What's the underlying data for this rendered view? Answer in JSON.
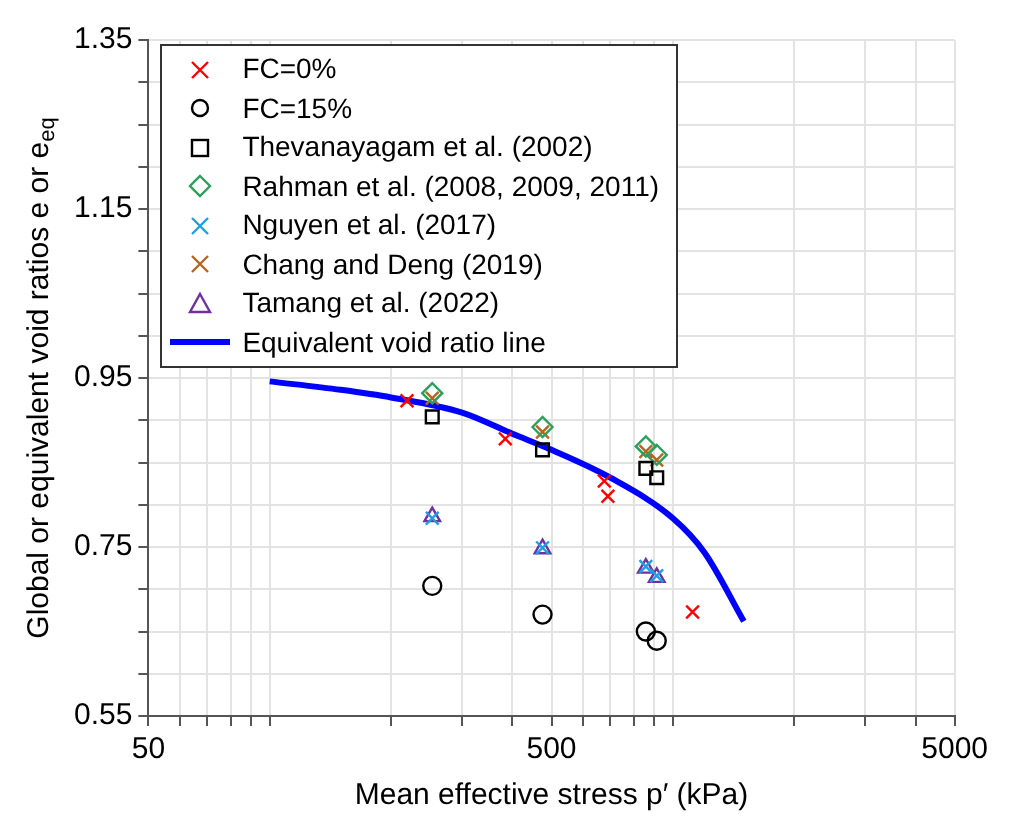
{
  "chart_data": {
    "type": "scatter",
    "xlabel": "Mean effective stress p′ (kPa)",
    "ylabel": "Global or equivalent void ratios e or e$_{eq}$",
    "log": "x",
    "grid": true,
    "legend": "top left",
    "xlim": [
      50,
      5000
    ],
    "ylim": [
      0.55,
      1.35
    ],
    "xticks": [
      50,
      {
        "value": 60,
        "label": null
      },
      {
        "value": 70,
        "label": null
      },
      {
        "value": 80,
        "label": null
      },
      {
        "value": 90,
        "label": null
      },
      {
        "value": 100,
        "label": null
      },
      {
        "value": 200,
        "label": null
      },
      {
        "value": 300,
        "label": null
      },
      {
        "value": 400,
        "label": null
      },
      500,
      {
        "value": 600,
        "label": null
      },
      {
        "value": 700,
        "label": null
      },
      {
        "value": 800,
        "label": null
      },
      {
        "value": 900,
        "label": null
      },
      {
        "value": 1000,
        "label": null
      },
      {
        "value": 2000,
        "label": null
      },
      {
        "value": 3000,
        "label": null
      },
      {
        "value": 4000,
        "label": null
      },
      5000
    ],
    "yticks": [
      0.55,
      {
        "value": 0.6,
        "label": null
      },
      {
        "value": 0.65,
        "label": null
      },
      {
        "value": 0.7,
        "label": null
      },
      0.75,
      {
        "value": 0.8,
        "label": null
      },
      {
        "value": 0.85,
        "label": null
      },
      {
        "value": 0.9,
        "label": null
      },
      0.95,
      {
        "value": 1.0,
        "label": null
      },
      {
        "value": 1.05,
        "label": null
      },
      {
        "value": 1.1,
        "label": null
      },
      1.15,
      {
        "value": 1.2,
        "label": null
      },
      {
        "value": 1.25,
        "label": null
      },
      {
        "value": 1.3,
        "label": null
      },
      1.35
    ],
    "series": [
      {
        "name": "FC=0%",
        "color": "#ff0000",
        "marker": "cross",
        "x": [
          219,
          384,
          676,
          690,
          1119
        ],
        "values": [
          0.923,
          0.878,
          0.828,
          0.81,
          0.673
        ]
      },
      {
        "name": "FC=15%",
        "color": "#000000",
        "marker": "circle",
        "x": [
          253,
          475,
          857,
          912
        ],
        "values": [
          0.704,
          0.67,
          0.65,
          0.639
        ]
      },
      {
        "name": "Thevanayagam et al. (2002)",
        "color": "#000000",
        "marker": "square",
        "x": [
          253,
          475,
          857,
          912
        ],
        "values": [
          0.904,
          0.865,
          0.843,
          0.832
        ]
      },
      {
        "name": "Rahman et al. (2008, 2009, 2011)",
        "color": "#2ca05a",
        "marker": "diamond",
        "x": [
          253,
          475,
          857,
          912
        ],
        "values": [
          0.932,
          0.892,
          0.869,
          0.859
        ]
      },
      {
        "name": "Nguyen et al. (2017)",
        "color": "#1e9fe0",
        "marker": "cross",
        "x": [
          253,
          475,
          857,
          912
        ],
        "values": [
          0.784,
          0.749,
          0.727,
          0.716
        ]
      },
      {
        "name": "Chang and Deng (2019)",
        "color": "#b5651d",
        "marker": "cross",
        "x": [
          253,
          475,
          857,
          912
        ],
        "values": [
          0.926,
          0.886,
          0.863,
          0.853
        ]
      },
      {
        "name": "Tamang et al. (2022)",
        "color": "#7030a0",
        "marker": "triangle",
        "x": [
          253,
          475,
          857,
          912
        ],
        "values": [
          0.786,
          0.748,
          0.725,
          0.714
        ]
      },
      {
        "name": "Equivalent void ratio line",
        "type": "line",
        "color": "#0000ff",
        "marker": "none",
        "x": [
          100,
          150,
          200,
          300,
          400,
          500,
          700,
          1000,
          1200,
          1500
        ],
        "values": [
          0.946,
          0.936,
          0.927,
          0.909,
          0.884,
          0.865,
          0.832,
          0.784,
          0.743,
          0.662
        ]
      }
    ]
  }
}
